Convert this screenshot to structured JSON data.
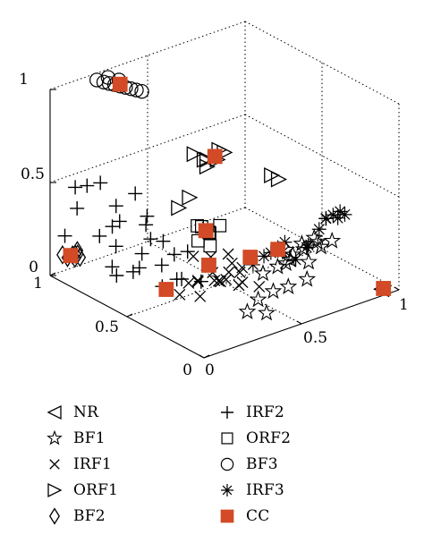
{
  "chart_data": {
    "type": "scatter",
    "projection": "3d",
    "grid": true,
    "legend_position": "bottom",
    "axes": {
      "x": {
        "range": [
          0,
          1
        ],
        "ticks": [
          "0",
          "0.5",
          "1"
        ]
      },
      "y": {
        "range": [
          0,
          1
        ],
        "ticks": [
          "0",
          "0.5",
          "1"
        ]
      },
      "z": {
        "range": [
          0,
          1
        ],
        "ticks": [
          "0",
          "0.5",
          "1"
        ]
      }
    },
    "series": [
      {
        "name": "NR",
        "marker": "triangle-left",
        "color": "#000000",
        "points": [
          [
            0.95,
            0.05,
            0.0
          ]
        ]
      },
      {
        "name": "BF1",
        "marker": "star",
        "color": "#000000",
        "points": [
          [
            0.5,
            0.1,
            0.28
          ],
          [
            0.55,
            0.12,
            0.3
          ],
          [
            0.6,
            0.08,
            0.26
          ],
          [
            0.62,
            0.15,
            0.32
          ],
          [
            0.66,
            0.12,
            0.35
          ],
          [
            0.58,
            0.2,
            0.28
          ],
          [
            0.7,
            0.15,
            0.3
          ],
          [
            0.64,
            0.05,
            0.34
          ],
          [
            0.52,
            0.18,
            0.22
          ],
          [
            0.48,
            0.06,
            0.18
          ],
          [
            0.45,
            0.12,
            0.14
          ],
          [
            0.56,
            0.04,
            0.2
          ],
          [
            0.6,
            0.2,
            0.22
          ],
          [
            0.67,
            0.2,
            0.25
          ],
          [
            0.72,
            0.08,
            0.33
          ],
          [
            0.42,
            0.18,
            0.08
          ],
          [
            0.4,
            0.1,
            0.05
          ],
          [
            0.38,
            0.2,
            0.02
          ],
          [
            0.5,
            0.25,
            0.16
          ]
        ]
      },
      {
        "name": "IRF1",
        "marker": "x",
        "color": "#000000",
        "points": [
          [
            0.38,
            0.32,
            0.18
          ],
          [
            0.42,
            0.35,
            0.2
          ],
          [
            0.36,
            0.4,
            0.15
          ],
          [
            0.4,
            0.28,
            0.12
          ],
          [
            0.33,
            0.35,
            0.14
          ],
          [
            0.44,
            0.4,
            0.22
          ],
          [
            0.3,
            0.42,
            0.12
          ],
          [
            0.39,
            0.45,
            0.2
          ],
          [
            0.35,
            0.3,
            0.16
          ],
          [
            0.28,
            0.38,
            0.06
          ],
          [
            0.45,
            0.32,
            0.1
          ],
          [
            0.34,
            0.5,
            0.2
          ],
          [
            0.48,
            0.36,
            0.15
          ],
          [
            0.5,
            0.4,
            0.1
          ],
          [
            0.44,
            0.45,
            0.05
          ],
          [
            0.3,
            0.48,
            0.08
          ],
          [
            0.52,
            0.3,
            0.06
          ],
          [
            0.38,
            0.52,
            0.04
          ],
          [
            0.27,
            0.5,
            0.02
          ],
          [
            0.47,
            0.5,
            0.02
          ]
        ]
      },
      {
        "name": "ORF1",
        "marker": "triangle-right",
        "color": "#000000",
        "points": [
          [
            0.45,
            0.55,
            0.62
          ],
          [
            0.48,
            0.52,
            0.66
          ],
          [
            0.5,
            0.5,
            0.7
          ],
          [
            0.46,
            0.58,
            0.64
          ],
          [
            0.52,
            0.56,
            0.68
          ],
          [
            0.49,
            0.6,
            0.62
          ],
          [
            0.44,
            0.62,
            0.66
          ],
          [
            0.4,
            0.6,
            0.45
          ],
          [
            0.36,
            0.62,
            0.4
          ],
          [
            0.62,
            0.3,
            0.6
          ],
          [
            0.6,
            0.32,
            0.62
          ]
        ]
      },
      {
        "name": "BF2",
        "marker": "diamond",
        "color": "#000000",
        "points": [
          [
            0.05,
            0.95,
            0.1
          ],
          [
            0.06,
            0.93,
            0.12
          ],
          [
            0.08,
            0.94,
            0.09
          ],
          [
            0.04,
            0.97,
            0.11
          ],
          [
            0.07,
            0.91,
            0.13
          ],
          [
            0.09,
            0.92,
            0.1
          ],
          [
            0.05,
            0.9,
            0.14
          ],
          [
            0.1,
            0.95,
            0.12
          ]
        ]
      },
      {
        "name": "IRF2",
        "marker": "plus",
        "color": "#000000",
        "points": [
          [
            0.1,
            0.8,
            0.55
          ],
          [
            0.05,
            0.9,
            0.5
          ],
          [
            0.2,
            0.7,
            0.5
          ],
          [
            0.15,
            0.95,
            0.45
          ],
          [
            0.02,
            0.85,
            0.42
          ],
          [
            0.22,
            0.85,
            0.36
          ],
          [
            0.12,
            0.7,
            0.38
          ],
          [
            0.3,
            0.75,
            0.32
          ],
          [
            0.08,
            0.78,
            0.28
          ],
          [
            0.2,
            0.6,
            0.3
          ],
          [
            0.28,
            0.62,
            0.25
          ],
          [
            0.18,
            0.8,
            0.18
          ],
          [
            0.25,
            0.72,
            0.15
          ],
          [
            0.35,
            0.55,
            0.2
          ],
          [
            0.15,
            0.65,
            0.12
          ],
          [
            0.28,
            0.5,
            0.1
          ],
          [
            0.22,
            0.55,
            0.06
          ],
          [
            0.32,
            0.68,
            0.08
          ],
          [
            0.12,
            0.72,
            0.08
          ],
          [
            0.3,
            0.8,
            0.02
          ],
          [
            0.2,
            0.85,
            0.04
          ],
          [
            0.35,
            0.62,
            0.02
          ],
          [
            0.38,
            0.5,
            0.05
          ],
          [
            0.06,
            0.98,
            0.2
          ],
          [
            0.4,
            0.7,
            0.1
          ],
          [
            0.24,
            0.9,
            0.22
          ],
          [
            0.16,
            0.58,
            0.4
          ]
        ]
      },
      {
        "name": "ORF2",
        "marker": "square",
        "color": "#000000",
        "points": [
          [
            0.42,
            0.5,
            0.3
          ],
          [
            0.4,
            0.55,
            0.32
          ],
          [
            0.44,
            0.52,
            0.28
          ],
          [
            0.38,
            0.52,
            0.26
          ],
          [
            0.46,
            0.48,
            0.33
          ],
          [
            0.41,
            0.48,
            0.24
          ],
          [
            0.43,
            0.56,
            0.3
          ]
        ]
      },
      {
        "name": "BF3",
        "marker": "circle",
        "color": "#000000",
        "points": [
          [
            0.2,
            0.95,
            1.0
          ],
          [
            0.22,
            0.93,
            0.99
          ],
          [
            0.24,
            0.92,
            0.98
          ],
          [
            0.26,
            0.91,
            0.97
          ],
          [
            0.28,
            0.9,
            0.96
          ],
          [
            0.3,
            0.89,
            0.95
          ],
          [
            0.32,
            0.88,
            0.94
          ],
          [
            0.34,
            0.87,
            0.93
          ],
          [
            0.36,
            0.86,
            0.92
          ],
          [
            0.25,
            0.94,
            1.0
          ],
          [
            0.29,
            0.92,
            0.98
          ]
        ]
      },
      {
        "name": "IRF3",
        "marker": "asterisk",
        "color": "#000000",
        "points": [
          [
            0.82,
            0.2,
            0.38
          ],
          [
            0.84,
            0.18,
            0.4
          ],
          [
            0.8,
            0.22,
            0.36
          ],
          [
            0.86,
            0.22,
            0.34
          ],
          [
            0.78,
            0.24,
            0.3
          ],
          [
            0.83,
            0.26,
            0.33
          ],
          [
            0.88,
            0.2,
            0.36
          ],
          [
            0.6,
            0.28,
            0.25
          ],
          [
            0.58,
            0.3,
            0.22
          ],
          [
            0.62,
            0.26,
            0.28
          ],
          [
            0.56,
            0.32,
            0.2
          ],
          [
            0.64,
            0.3,
            0.2
          ],
          [
            0.52,
            0.34,
            0.16
          ],
          [
            0.66,
            0.24,
            0.18
          ],
          [
            0.7,
            0.22,
            0.24
          ],
          [
            0.74,
            0.26,
            0.22
          ]
        ]
      },
      {
        "name": "CC",
        "marker": "filled-square",
        "color": "#d24a26",
        "points": [
          [
            0.96,
            0.05,
            0.0
          ],
          [
            0.49,
            0.55,
            0.66
          ],
          [
            0.42,
            0.52,
            0.3
          ],
          [
            0.38,
            0.45,
            0.16
          ],
          [
            0.05,
            0.93,
            0.12
          ],
          [
            0.6,
            0.28,
            0.24
          ],
          [
            0.28,
            0.6,
            0.0
          ],
          [
            0.49,
            0.32,
            0.22
          ],
          [
            0.28,
            0.9,
            0.97
          ]
        ]
      }
    ]
  },
  "legend": {
    "items": [
      {
        "label": "NR",
        "marker": "triangle-left"
      },
      {
        "label": "BF1",
        "marker": "star"
      },
      {
        "label": "IRF1",
        "marker": "x"
      },
      {
        "label": "ORF1",
        "marker": "triangle-right"
      },
      {
        "label": "BF2",
        "marker": "diamond"
      },
      {
        "label": "IRF2",
        "marker": "plus"
      },
      {
        "label": "ORF2",
        "marker": "square"
      },
      {
        "label": "BF3",
        "marker": "circle"
      },
      {
        "label": "IRF3",
        "marker": "asterisk"
      },
      {
        "label": "CC",
        "marker": "filled-square",
        "color": "#d24a26"
      }
    ]
  }
}
